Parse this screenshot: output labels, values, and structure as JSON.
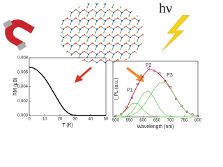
{
  "decoration_text": "hν",
  "chart_data": [
    {
      "type": "line",
      "y_label": "RM (μB)",
      "x_label": "T (K)",
      "x": [
        0,
        2.5,
        5,
        7.5,
        10,
        12.5,
        15,
        17.5,
        20,
        22.5,
        25,
        27.5,
        30,
        32.5,
        35,
        37.5,
        40,
        42.5,
        45,
        47.5,
        50
      ],
      "series": [
        {
          "color": "#000000",
          "values": [
            0.0067,
            0.0066,
            0.0063,
            0.0058,
            0.0052,
            0.0044,
            0.0035,
            0.0026,
            0.0017,
            0.0009,
            0.0004,
            0.0001,
            0,
            0,
            0,
            0,
            0,
            0,
            0,
            0,
            0
          ]
        }
      ],
      "xlim": [
        0,
        50
      ],
      "xticks": [
        0,
        10,
        20,
        30,
        40,
        50
      ],
      "ylim": [
        0,
        0.008
      ],
      "yticks": [
        {
          "value": 0,
          "label": "0.000"
        },
        {
          "value": 0.002,
          "label": "0.002"
        },
        {
          "value": 0.004,
          "label": "0.004"
        },
        {
          "value": 0.006,
          "label": "0.006"
        },
        {
          "value": 0.008,
          "label": "0.008"
        }
      ]
    },
    {
      "type": "line",
      "y_label": "I_PL (a.u.)",
      "x_label": "Wavelength (nm)",
      "x": [
        500,
        520,
        540,
        560,
        580,
        600,
        620,
        640,
        660,
        680,
        700,
        720,
        740,
        760,
        780,
        800
      ],
      "series": [
        {
          "color": "#7b3f9e",
          "marker": true,
          "values": [
            0.02,
            0.05,
            0.2,
            0.4,
            0.68,
            0.83,
            1.0,
            0.95,
            0.9,
            0.74,
            0.61,
            0.37,
            0.23,
            0.11,
            0.05,
            0.02
          ]
        },
        {
          "color": "#c0202a",
          "values": [
            0.01,
            0.04,
            0.18,
            0.42,
            0.66,
            0.85,
            0.98,
            0.97,
            0.88,
            0.76,
            0.59,
            0.39,
            0.22,
            0.1,
            0.04,
            0.01
          ]
        },
        {
          "color": "#7dd36a",
          "values": [
            0.01,
            0.04,
            0.15,
            0.28,
            0.28,
            0.15,
            0.05,
            0.01,
            0,
            0,
            0,
            0,
            0,
            0,
            0,
            0
          ]
        },
        {
          "color": "#7dd36a",
          "values": [
            0,
            0,
            0.02,
            0.1,
            0.28,
            0.48,
            0.54,
            0.39,
            0.18,
            0.05,
            0.01,
            0,
            0,
            0,
            0,
            0
          ]
        },
        {
          "color": "#7dd36a",
          "values": [
            0,
            0,
            0.01,
            0.04,
            0.1,
            0.22,
            0.39,
            0.57,
            0.7,
            0.71,
            0.58,
            0.39,
            0.22,
            0.1,
            0.04,
            0.01
          ]
        }
      ],
      "annotations": [
        "P1",
        "P2",
        "P3"
      ],
      "xlim": [
        490,
        800
      ],
      "xticks": [
        500,
        550,
        600,
        650,
        700,
        750,
        800
      ],
      "ylim": [
        0,
        1.15
      ]
    }
  ]
}
